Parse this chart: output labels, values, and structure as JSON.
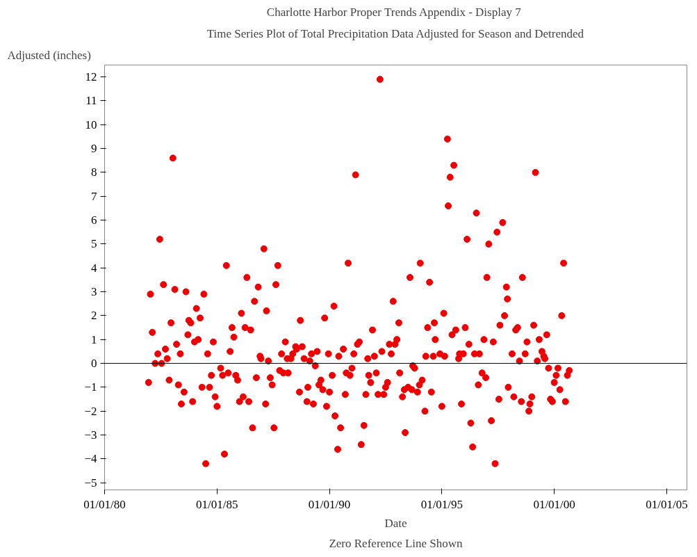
{
  "chart_data": {
    "type": "scatter",
    "title": "Charlotte Harbor  Proper Trends Appendix - Display 7",
    "subtitle": "Time Series Plot of Total Precipitation Data Adjusted for Season and Detrended",
    "xlabel": "Date",
    "ylabel": "Adjusted (inches)",
    "annotations": [
      "Zero Reference Line Shown"
    ],
    "x": [
      "1981-12-15",
      "1982-01-15",
      "1982-02-15",
      "1982-04-01",
      "1982-05-15",
      "1982-06-15",
      "1982-07-15",
      "1982-08-15",
      "1982-09-15",
      "1982-10-15",
      "1982-11-15",
      "1982-12-15",
      "1983-01-15",
      "1983-02-15",
      "1983-03-15",
      "1983-04-15",
      "1983-05-15",
      "1983-06-01",
      "1983-07-15",
      "1983-08-15",
      "1983-09-15",
      "1983-10-01",
      "1983-11-01",
      "1983-12-01",
      "1984-01-01",
      "1984-02-01",
      "1984-03-01",
      "1984-04-01",
      "1984-05-01",
      "1984-06-01",
      "1984-07-01",
      "1984-08-01",
      "1984-09-01",
      "1984-10-01",
      "1984-11-01",
      "1984-12-01",
      "1985-01-01",
      "1985-03-01",
      "1985-04-01",
      "1985-05-01",
      "1985-06-01",
      "1985-07-01",
      "1985-08-01",
      "1985-09-01",
      "1985-10-01",
      "1985-11-01",
      "1985-12-01",
      "1986-01-01",
      "1986-02-01",
      "1986-03-01",
      "1986-04-01",
      "1986-05-01",
      "1986-06-01",
      "1986-07-01",
      "1986-08-01",
      "1986-09-01",
      "1986-10-01",
      "1986-11-01",
      "1986-12-01",
      "1986-12-15",
      "1987-02-01",
      "1987-03-01",
      "1987-03-15",
      "1987-04-15",
      "1987-05-15",
      "1987-06-15",
      "1987-07-15",
      "1987-08-15",
      "1987-09-15",
      "1987-10-15",
      "1987-11-15",
      "1987-12-15",
      "1988-01-15",
      "1988-02-15",
      "1988-03-01",
      "1988-04-15",
      "1988-05-15",
      "1988-07-01",
      "1988-07-15",
      "1988-09-01",
      "1988-09-15",
      "1988-10-15",
      "1988-11-15",
      "1989-01-01",
      "1989-01-15",
      "1989-02-15",
      "1989-03-15",
      "1989-04-15",
      "1989-05-15",
      "1989-06-15",
      "1989-07-15",
      "1989-08-15",
      "1989-09-15",
      "1989-10-15",
      "1989-11-15",
      "1989-12-15",
      "1990-01-01",
      "1990-02-15",
      "1990-03-15",
      "1990-04-01",
      "1990-05-15",
      "1990-06-01",
      "1990-07-01",
      "1990-08-15",
      "1990-09-15",
      "1990-10-01",
      "1990-11-01",
      "1990-12-01",
      "1991-01-01",
      "1991-02-01",
      "1991-03-01",
      "1991-04-01",
      "1991-05-01",
      "1991-06-01",
      "1991-07-15",
      "1991-08-15",
      "1991-09-15",
      "1991-10-01",
      "1991-11-01",
      "1991-12-01",
      "1992-01-01",
      "1992-02-01",
      "1992-03-01",
      "1992-04-01",
      "1992-05-01",
      "1992-06-01",
      "1992-07-01",
      "1992-08-01",
      "1992-09-01",
      "1992-10-01",
      "1992-11-01",
      "1992-12-01",
      "1993-01-01",
      "1993-02-01",
      "1993-02-15",
      "1993-04-01",
      "1993-05-01",
      "1993-05-15",
      "1993-07-01",
      "1993-08-01",
      "1993-09-01",
      "1993-09-15",
      "1993-10-15",
      "1993-12-01",
      "1994-01-01",
      "1994-01-15",
      "1994-02-15",
      "1994-04-01",
      "1994-04-15",
      "1994-05-15",
      "1994-06-15",
      "1994-07-15",
      "1994-08-15",
      "1994-09-01",
      "1994-09-15",
      "1994-12-01",
      "1995-01-01",
      "1995-02-01",
      "1995-02-15",
      "1995-04-01",
      "1995-04-15",
      "1995-05-15",
      "1995-06-15",
      "1995-07-15",
      "1995-08-15",
      "1995-10-01",
      "1995-10-15",
      "1995-11-15",
      "1995-12-15",
      "1996-01-15",
      "1996-02-15",
      "1996-03-15",
      "1996-04-15",
      "1996-05-15",
      "1996-06-15",
      "1996-07-15",
      "1996-08-15",
      "1996-09-01",
      "1996-10-15",
      "1996-11-15",
      "1996-12-15",
      "1997-01-01",
      "1997-02-01",
      "1997-03-15",
      "1997-04-15",
      "1997-05-15",
      "1997-06-15",
      "1997-07-15",
      "1997-08-01",
      "1997-09-15",
      "1997-10-15",
      "1997-11-15",
      "1997-12-01",
      "1997-12-15",
      "1998-02-15",
      "1998-03-15",
      "1998-04-15",
      "1998-05-15",
      "1998-06-15",
      "1998-07-15",
      "1998-08-01",
      "1998-09-15",
      "1998-10-15",
      "1998-11-15",
      "1998-12-01",
      "1999-01-01",
      "1999-02-01",
      "1999-03-01",
      "1999-04-01",
      "1999-05-01",
      "1999-06-15",
      "1999-07-15",
      "1999-08-01",
      "1999-09-01",
      "1999-10-01",
      "1999-11-01",
      "1999-12-01",
      "2000-01-01",
      "2000-02-01",
      "2000-03-01",
      "2000-04-01",
      "2000-05-01",
      "2000-06-01",
      "2000-07-01",
      "2000-08-01",
      "2000-09-01"
    ],
    "values": [
      -0.8,
      2.9,
      1.3,
      0.0,
      0.4,
      5.2,
      0.0,
      3.3,
      0.6,
      0.2,
      -0.7,
      1.7,
      8.6,
      3.1,
      0.8,
      -0.9,
      0.4,
      -1.7,
      -1.2,
      3.0,
      1.2,
      1.8,
      1.7,
      -1.6,
      0.9,
      2.3,
      1.0,
      1.9,
      -1.0,
      2.9,
      -4.2,
      0.4,
      -1.0,
      -0.5,
      0.9,
      -1.4,
      -1.8,
      -0.2,
      -0.5,
      -3.8,
      4.1,
      -0.4,
      0.5,
      1.5,
      1.1,
      -0.5,
      -0.7,
      -1.6,
      2.1,
      -1.4,
      1.5,
      3.6,
      -1.6,
      1.4,
      -2.7,
      2.6,
      -0.6,
      3.2,
      0.3,
      0.2,
      4.8,
      -1.7,
      2.2,
      0.1,
      -0.6,
      -0.9,
      -2.7,
      3.3,
      4.1,
      -0.3,
      0.4,
      -0.4,
      0.9,
      0.2,
      -0.4,
      0.2,
      0.4,
      0.7,
      0.6,
      -1.2,
      1.8,
      0.7,
      0.2,
      -1.6,
      -1.0,
      0.1,
      0.4,
      -1.7,
      -0.1,
      0.5,
      -0.9,
      -0.7,
      -1.1,
      1.9,
      -1.8,
      0.4,
      -1.2,
      -0.5,
      2.4,
      -2.2,
      -3.6,
      0.3,
      -2.7,
      0.6,
      -1.3,
      -0.4,
      4.2,
      -0.5,
      -0.2,
      0.4,
      7.9,
      0.8,
      0.9,
      -3.4,
      -2.6,
      -1.3,
      0.2,
      -0.5,
      -0.8,
      1.4,
      0.3,
      -0.4,
      -1.3,
      11.9,
      0.5,
      -1.3,
      -1.0,
      -0.8,
      0.8,
      0.4,
      2.6,
      0.8,
      1.0,
      1.7,
      -0.4,
      -1.4,
      -1.1,
      -2.9,
      -1.0,
      3.6,
      -1.1,
      -0.1,
      -0.2,
      -1.2,
      -0.9,
      4.2,
      -0.7,
      -2.0,
      0.3,
      1.5,
      3.4,
      -1.2,
      0.3,
      1.7,
      1.0,
      0.4,
      -1.8,
      2.1,
      0.3,
      9.4,
      6.6,
      7.8,
      1.2,
      8.3,
      1.4,
      0.2,
      0.4,
      -1.7,
      0.4,
      1.5,
      5.2,
      0.8,
      -2.5,
      -3.5,
      0.4,
      6.3,
      -0.9,
      0.4,
      -0.4,
      1.0,
      -0.6,
      3.6,
      5.0,
      -2.4,
      0.9,
      -4.2,
      5.5,
      -1.5,
      1.6,
      5.9,
      2.0,
      3.2,
      2.7,
      -1.0,
      0.4,
      -1.4,
      1.4,
      1.5,
      0.1,
      -1.6,
      3.6,
      0.4,
      0.9,
      -2.0,
      -1.7,
      -1.4,
      1.6,
      8.0,
      0.1,
      1.0,
      0.5,
      0.3,
      0.2,
      1.2,
      -0.2,
      -1.5,
      -1.6,
      -0.8,
      -0.5,
      -0.2,
      -1.1,
      2.0,
      4.2,
      -1.6,
      -0.5,
      -0.3
    ],
    "color": "#ee0000",
    "marker": "circle",
    "grid": false,
    "xlim": [
      "1980-01-01",
      "2005-11-25"
    ],
    "ylim": [
      -5.3,
      12.5
    ],
    "xticks": [
      {
        "value": "1980-01-01",
        "label": "01/01/80"
      },
      {
        "value": "1985-01-01",
        "label": "01/01/85"
      },
      {
        "value": "1990-01-01",
        "label": "01/01/90"
      },
      {
        "value": "1995-01-01",
        "label": "01/01/95"
      },
      {
        "value": "2000-01-01",
        "label": "01/01/00"
      },
      {
        "value": "2005-01-01",
        "label": "01/01/05"
      }
    ],
    "yticks": [
      -5,
      -4,
      -3,
      -2,
      -1,
      0,
      1,
      2,
      3,
      4,
      5,
      6,
      7,
      8,
      9,
      10,
      11,
      12
    ],
    "ref_lines": [
      {
        "axis": "y",
        "value": 0,
        "color": "#000000"
      }
    ]
  }
}
